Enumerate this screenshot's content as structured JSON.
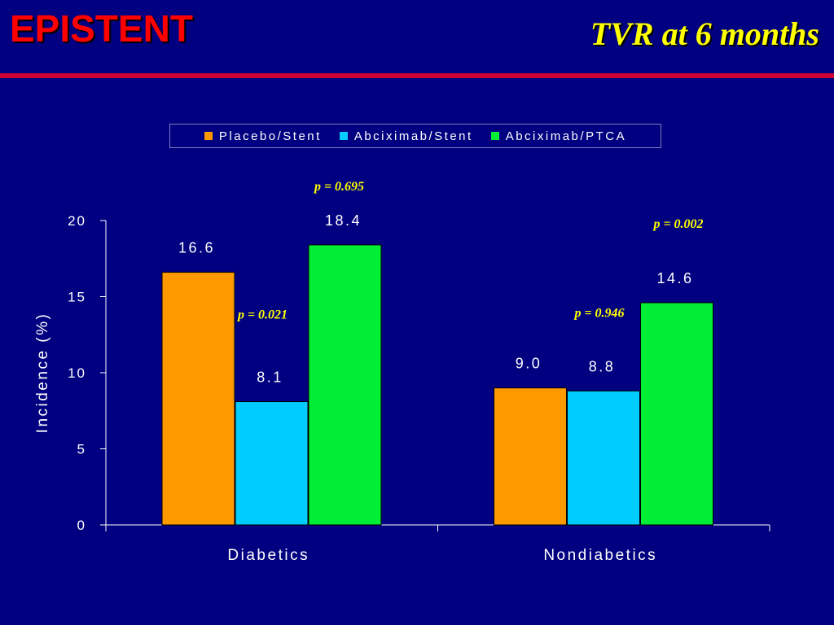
{
  "header": {
    "brand": "EPISTENT",
    "title": "TVR at 6 months"
  },
  "colors": {
    "background": "#000080",
    "brand": "#ff0000",
    "title": "#ffff00",
    "rule": "#cc0033",
    "pvalue": "#ffff00"
  },
  "legend": {
    "placement": "top",
    "items": [
      {
        "label": "Placebo/Stent",
        "color": "#ff9900"
      },
      {
        "label": "Abciximab/Stent",
        "color": "#00ccff"
      },
      {
        "label": "Abciximab/PTCA",
        "color": "#00ee33"
      }
    ]
  },
  "chart_data": {
    "type": "bar",
    "categories": [
      "Diabetics",
      "Nondiabetics"
    ],
    "series": [
      {
        "name": "Placebo/Stent",
        "values": [
          16.6,
          9.0
        ],
        "color": "#ff9900"
      },
      {
        "name": "Abciximab/Stent",
        "values": [
          8.1,
          8.8
        ],
        "color": "#00ccff"
      },
      {
        "name": "Abciximab/PTCA",
        "values": [
          18.4,
          14.6
        ],
        "color": "#00ee33"
      }
    ],
    "value_labels": [
      [
        "16.6",
        "9.0"
      ],
      [
        "8.1",
        "8.8"
      ],
      [
        "18.4",
        "14.6"
      ]
    ],
    "ylabel": "Incidence (%)",
    "ylim": [
      0,
      20
    ],
    "yticks": [
      0,
      5,
      10,
      15,
      20
    ],
    "grid": false,
    "annotations": [
      {
        "category": 0,
        "series": 2,
        "text": "p = 0.695"
      },
      {
        "category": 0,
        "series": 1,
        "text": "p = 0.021"
      },
      {
        "category": 1,
        "series": 2,
        "text": "p = 0.002"
      },
      {
        "category": 1,
        "series": 1,
        "text": "p = 0.946"
      }
    ]
  }
}
